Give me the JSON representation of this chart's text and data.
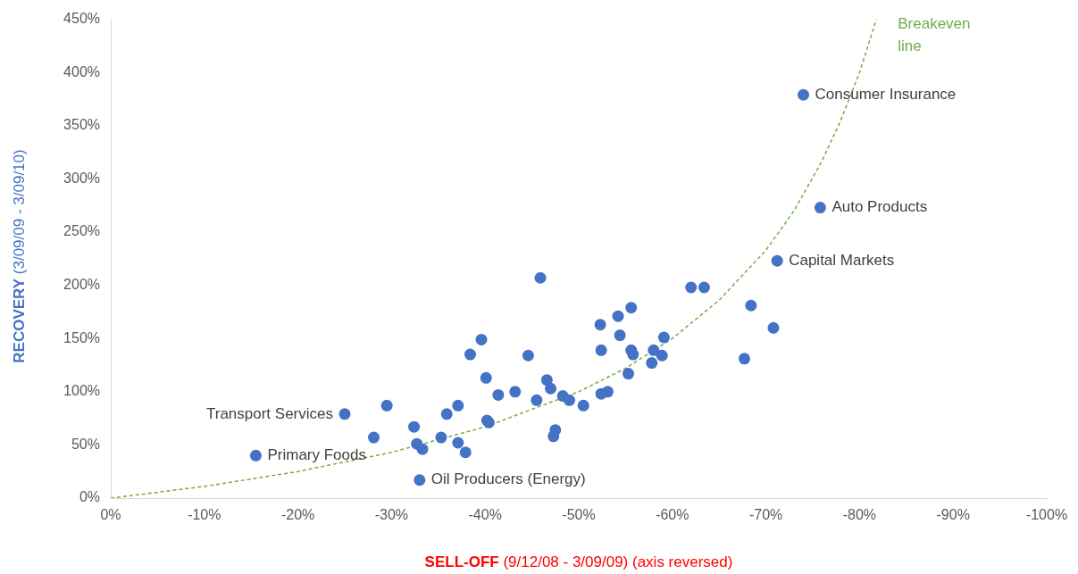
{
  "chart_data": {
    "type": "scatter",
    "xlabel": "SELL-OFF (9/12/08 - 3/09/09) (axis reversed)",
    "ylabel": "RECOVERY (3/09/09 - 3/09/10)",
    "xlim": [
      0,
      -100
    ],
    "xticks": [
      {
        "value": 0,
        "label": "0%"
      },
      {
        "value": -10,
        "label": "-10%"
      },
      {
        "value": -20,
        "label": "-20%"
      },
      {
        "value": -30,
        "label": "-30%"
      },
      {
        "value": -40,
        "label": "-40%"
      },
      {
        "value": -50,
        "label": "-50%"
      },
      {
        "value": -60,
        "label": "-60%"
      },
      {
        "value": -70,
        "label": "-70%"
      },
      {
        "value": -80,
        "label": "-80%"
      },
      {
        "value": -90,
        "label": "-90%"
      },
      {
        "value": -100,
        "label": "-100%"
      }
    ],
    "ylim": [
      0,
      450
    ],
    "yticks": [
      {
        "value": 0,
        "label": "0%"
      },
      {
        "value": 50,
        "label": "50%"
      },
      {
        "value": 100,
        "label": "100%"
      },
      {
        "value": 150,
        "label": "150%"
      },
      {
        "value": 200,
        "label": "200%"
      },
      {
        "value": 250,
        "label": "250%"
      },
      {
        "value": 300,
        "label": "300%"
      },
      {
        "value": 350,
        "label": "350%"
      },
      {
        "value": 400,
        "label": "400%"
      },
      {
        "value": 450,
        "label": "450%"
      }
    ],
    "grid": false,
    "legend": false,
    "marker": "circle",
    "series": [
      {
        "color": "#4472c4",
        "x": [
          -25,
          -15.5,
          -33,
          -74,
          -75.8,
          -71.2,
          -29.5,
          -28.1,
          -32.4,
          -32.7,
          -33.3,
          -35.3,
          -35.9,
          -37.1,
          -37.1,
          -37.9,
          -38.4,
          -39.6,
          -40.1,
          -40.2,
          -40.4,
          -41.4,
          -43.2,
          -44.6,
          -45.5,
          -45.9,
          -46.6,
          -47,
          -47.3,
          -47.5,
          -48.3,
          -49,
          -50.5,
          -52.3,
          -52.4,
          -52.4,
          -53.1,
          -54.2,
          -54.4,
          -55.3,
          -55.6,
          -55.6,
          -55.8,
          -57.8,
          -58,
          -58.9,
          -59.1,
          -62,
          -63.4,
          -67.7,
          -68.4,
          -70.8
        ],
        "values": [
          79,
          40,
          17,
          379,
          273,
          223,
          87,
          57,
          67,
          51,
          46,
          57,
          79,
          87,
          52,
          43,
          135,
          149,
          113,
          73,
          71,
          97,
          100,
          134,
          92,
          207,
          111,
          103,
          58,
          64,
          96,
          92,
          87,
          163,
          139,
          98,
          100,
          171,
          153,
          117,
          179,
          139,
          135,
          127,
          139,
          134,
          151,
          198,
          198,
          131,
          181,
          160
        ]
      },
      {
        "type": "line",
        "name": "Breakeven line",
        "color": "#70ad47",
        "line_style": "dashed",
        "marker": "none",
        "x": [
          0,
          -10,
          -20,
          -30,
          -40,
          -50,
          -55,
          -60,
          -65,
          -70,
          -73,
          -76,
          -78,
          -80,
          -81.8
        ],
        "values": [
          0,
          11,
          25,
          43,
          67,
          100,
          122,
          150,
          186,
          233,
          270,
          317,
          355,
          400,
          450
        ]
      }
    ],
    "annotations": [
      {
        "text": "Transport Services",
        "x": -25,
        "y": 79
      },
      {
        "text": "Primary Foods",
        "x": -15.5,
        "y": 40
      },
      {
        "text": "Oil Producers (Energy)",
        "x": -33,
        "y": 17
      },
      {
        "text": "Consumer Insurance",
        "x": -74,
        "y": 379
      },
      {
        "text": "Auto Products",
        "x": -75.8,
        "y": 273
      },
      {
        "text": "Capital Markets",
        "x": -71.2,
        "y": 223
      }
    ]
  }
}
